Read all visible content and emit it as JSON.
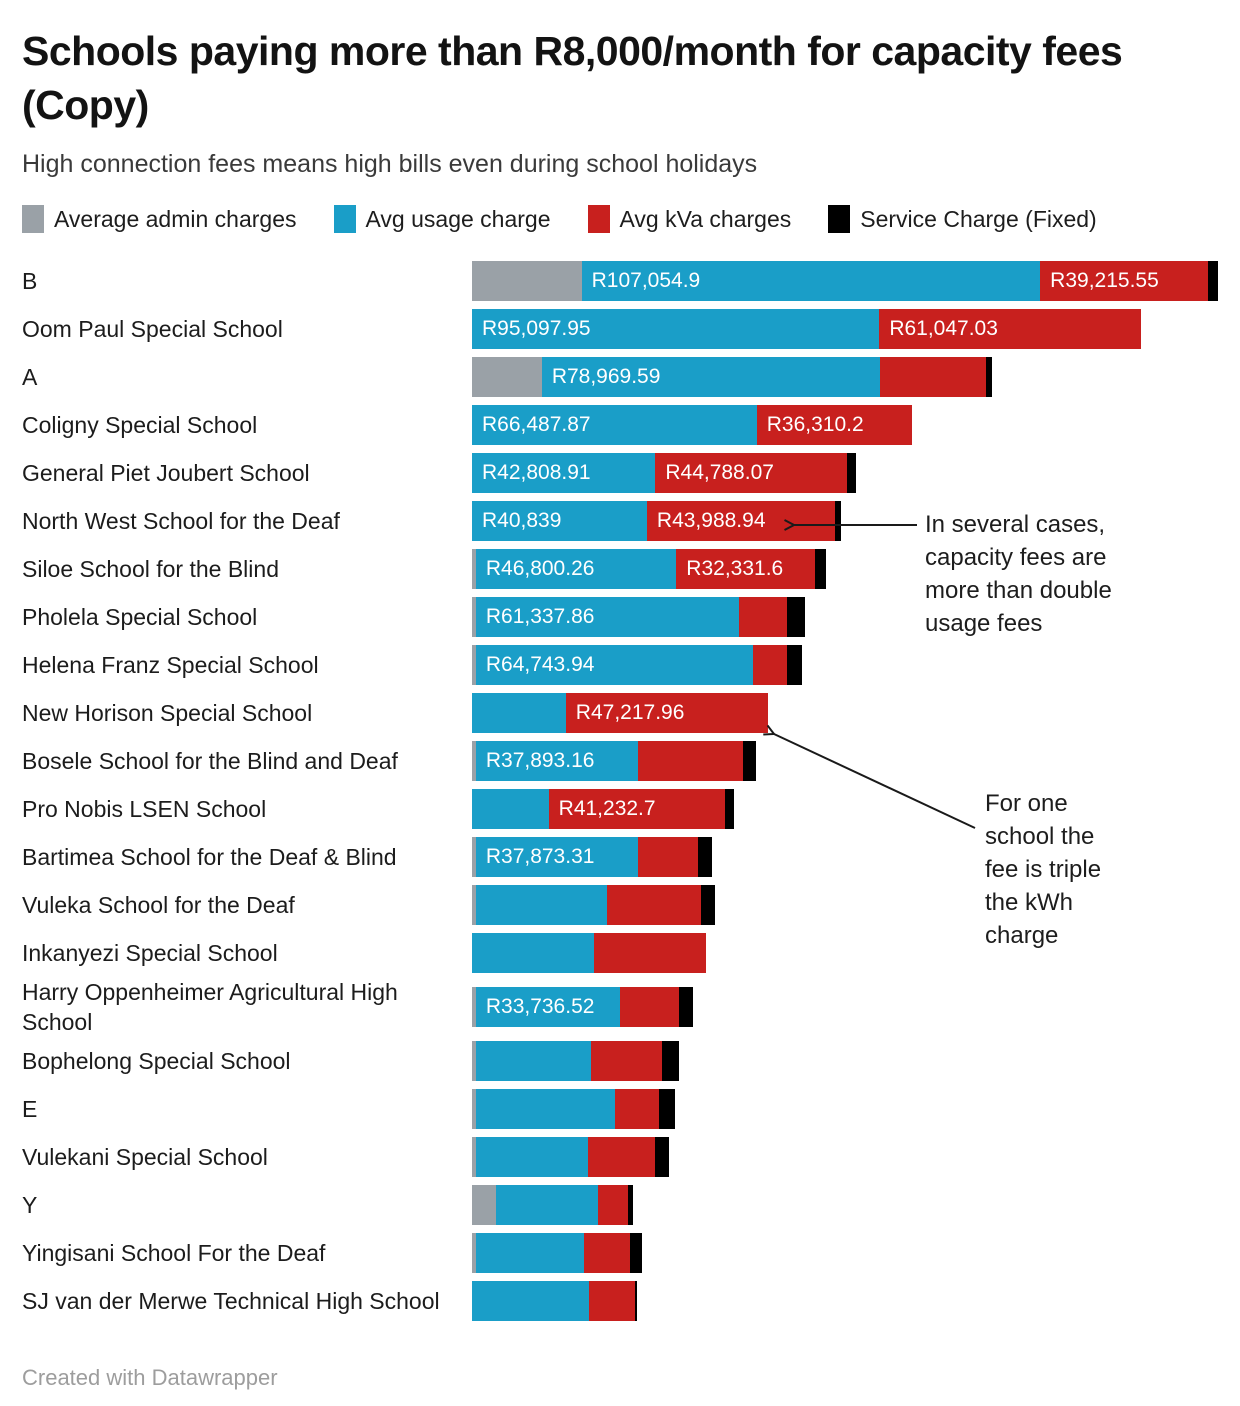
{
  "title": "Schools paying more than R8,000/month for capacity fees (Copy)",
  "subtitle": "High connection fees means high bills even during school holidays",
  "footer": "Created with Datawrapper",
  "colors": {
    "admin": "#9aa1a7",
    "usage": "#1a9ec8",
    "kva": "#c8201e",
    "service": "#000000",
    "arrow": "#1a1a1a"
  },
  "legend": [
    {
      "key": "admin",
      "label": "Average admin charges"
    },
    {
      "key": "usage",
      "label": "Avg usage charge"
    },
    {
      "key": "kva",
      "label": "Avg kVa charges"
    },
    {
      "key": "service",
      "label": "Service Charge (Fixed)"
    }
  ],
  "annotations": [
    {
      "id": "double-usage",
      "lines": [
        "In several cases,",
        "capacity fees are",
        "more than double",
        "usage fees"
      ]
    },
    {
      "id": "triple-kwh",
      "lines": [
        "For one",
        "school the",
        "fee is triple",
        "the kWh",
        "charge"
      ]
    }
  ],
  "chart_data": {
    "type": "bar",
    "stacked": true,
    "orientation": "horizontal",
    "axis_max": 174170,
    "grid": false,
    "legend_position": "top",
    "series_names": [
      "Average admin charges",
      "Avg usage charge",
      "Avg kVa charges",
      "Service Charge (Fixed)"
    ],
    "rows": [
      {
        "school": "B",
        "admin": 25600,
        "usage": 107054.9,
        "kva": 39215.55,
        "service": 2300,
        "usage_label": "R107,054.9",
        "kva_label": "R39,215.55"
      },
      {
        "school": "Oom Paul Special School",
        "admin": 0,
        "usage": 95097.95,
        "kva": 61047.03,
        "service": 0,
        "usage_label": "R95,097.95",
        "kva_label": "R61,047.03"
      },
      {
        "school": "A",
        "admin": 16300,
        "usage": 78969.59,
        "kva": 24700,
        "service": 1400,
        "usage_label": "R78,969.59",
        "kva_label": ""
      },
      {
        "school": "Coligny Special School",
        "admin": 0,
        "usage": 66487.87,
        "kva": 36310.2,
        "service": 0,
        "usage_label": "R66,487.87",
        "kva_label": "R36,310.2"
      },
      {
        "school": "General Piet Joubert School",
        "admin": 0,
        "usage": 42808.91,
        "kva": 44788.07,
        "service": 2100,
        "usage_label": "R42,808.91",
        "kva_label": "R44,788.07"
      },
      {
        "school": "North West School for the Deaf",
        "admin": 0,
        "usage": 40839,
        "kva": 43988.94,
        "service": 1400,
        "usage_label": "R40,839",
        "kva_label": "R43,988.94"
      },
      {
        "school": "Siloe School for the Blind",
        "admin": 900,
        "usage": 46800.26,
        "kva": 32331.6,
        "service": 2600,
        "usage_label": "R46,800.26",
        "kva_label": "R32,331.6"
      },
      {
        "school": "Pholela Special School",
        "admin": 900,
        "usage": 61337.86,
        "kva": 11400,
        "service": 4000,
        "usage_label": "R61,337.86",
        "kva_label": ""
      },
      {
        "school": "Helena Franz Special School",
        "admin": 900,
        "usage": 64743.94,
        "kva": 7900,
        "service": 3500,
        "usage_label": "R64,743.94",
        "kva_label": ""
      },
      {
        "school": "New Horison Special School",
        "admin": 0,
        "usage": 21900,
        "kva": 47217.96,
        "service": 0,
        "usage_label": "",
        "kva_label": "R47,217.96"
      },
      {
        "school": "Bosele School for the Blind and Deaf",
        "admin": 900,
        "usage": 37893.16,
        "kva": 24500,
        "service": 3000,
        "usage_label": "R37,893.16",
        "kva_label": ""
      },
      {
        "school": "Pro Nobis LSEN School",
        "admin": 0,
        "usage": 17900,
        "kva": 41232.7,
        "service": 2100,
        "usage_label": "",
        "kva_label": "R41,232.7"
      },
      {
        "school": "Bartimea School for the Deaf & Blind",
        "admin": 900,
        "usage": 37873.31,
        "kva": 14000,
        "service": 3300,
        "usage_label": "R37,873.31",
        "kva_label": ""
      },
      {
        "school": "Vuleka School for the Deaf",
        "admin": 900,
        "usage": 30700,
        "kva": 21900,
        "service": 3300,
        "usage_label": "",
        "kva_label": ""
      },
      {
        "school": "Inkanyezi Special School",
        "admin": 0,
        "usage": 28400,
        "kva": 26300,
        "service": 0,
        "usage_label": "",
        "kva_label": ""
      },
      {
        "school": "Harry Oppenheimer Agricultural High School",
        "admin": 900,
        "usage": 33736.52,
        "kva": 13700,
        "service": 3300,
        "usage_label": "R33,736.52",
        "kva_label": ""
      },
      {
        "school": "Bophelong Special School",
        "admin": 900,
        "usage": 27000,
        "kva": 16500,
        "service": 4000,
        "usage_label": "",
        "kva_label": ""
      },
      {
        "school": "E",
        "admin": 900,
        "usage": 32600,
        "kva": 10200,
        "service": 3700,
        "usage_label": "",
        "kva_label": ""
      },
      {
        "school": "Vulekani Special School",
        "admin": 900,
        "usage": 26300,
        "kva": 15600,
        "service": 3300,
        "usage_label": "",
        "kva_label": ""
      },
      {
        "school": "Y",
        "admin": 5500,
        "usage": 24000,
        "kva": 7000,
        "service": 1200,
        "usage_label": "",
        "kva_label": ""
      },
      {
        "school": "Yingisani School For the Deaf",
        "admin": 900,
        "usage": 25200,
        "kva": 10900,
        "service": 2600,
        "usage_label": "",
        "kva_label": ""
      },
      {
        "school": "SJ van der Merwe Technical High School",
        "admin": 0,
        "usage": 27200,
        "kva": 10900,
        "service": 500,
        "usage_label": "",
        "kva_label": ""
      }
    ]
  }
}
